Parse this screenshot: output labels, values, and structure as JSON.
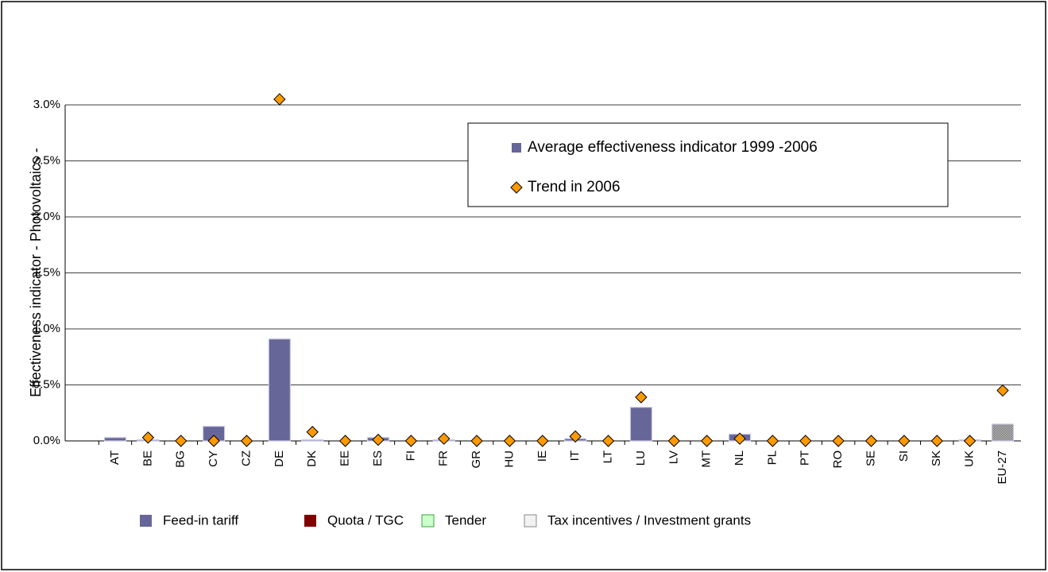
{
  "chart_data": {
    "type": "bar+scatter",
    "y_label": "Effectiveness indicator - Photovoltaics -",
    "categories": [
      "AT",
      "BE",
      "BG",
      "CY",
      "CZ",
      "DE",
      "DK",
      "EE",
      "ES",
      "FI",
      "FR",
      "GR",
      "HU",
      "IE",
      "IT",
      "LT",
      "LU",
      "LV",
      "MT",
      "NL",
      "PL",
      "PT",
      "RO",
      "SE",
      "SI",
      "SK",
      "UK",
      "EU-27"
    ],
    "series": [
      {
        "name": "Average effectiveness indicator 1999 -2006",
        "type": "bar",
        "color": "#666699",
        "colors": [
          "#666699",
          "#666699",
          "#666699",
          "#666699",
          "#666699",
          "#666699",
          "#666699",
          "#666699",
          "#666699",
          "#666699",
          "#666699",
          "#666699",
          "#666699",
          "#666699",
          "#666699",
          "#666699",
          "#666699",
          "#666699",
          "#666699",
          "#666699",
          "#666699",
          "#666699",
          "#666699",
          "#666699",
          "#666699",
          "#666699",
          "#666699",
          "#9a9a9a"
        ],
        "values": [
          0.03,
          0.01,
          0,
          0.13,
          0,
          0.91,
          0.01,
          0,
          0.03,
          0,
          0.01,
          0,
          0,
          0,
          0.02,
          0,
          0.3,
          0,
          0,
          0.06,
          0,
          0,
          0,
          0,
          0,
          0,
          0.01,
          0.15
        ]
      },
      {
        "name": "Trend in 2006",
        "type": "scatter",
        "color": "#ff9900",
        "values": [
          null,
          0.03,
          0,
          0,
          0,
          3.05,
          0.08,
          0,
          0.01,
          0,
          0.02,
          0,
          0,
          0,
          0.04,
          0,
          0.39,
          0,
          0,
          0.02,
          0,
          0,
          0,
          0,
          0,
          0,
          0,
          0.45
        ]
      }
    ],
    "ylim": [
      0,
      3
    ],
    "yticks": [
      {
        "value": 0,
        "label": "0.0%"
      },
      {
        "value": 0.5,
        "label": "0.5%"
      },
      {
        "value": 1,
        "label": "1.0%"
      },
      {
        "value": 1.5,
        "label": "1.5%"
      },
      {
        "value": 2,
        "label": "2.0%"
      },
      {
        "value": 2.5,
        "label": "2.5%"
      },
      {
        "value": 3,
        "label": "3.0%"
      }
    ],
    "grid": true,
    "policy_legend": [
      {
        "name": "Feed-in tariff",
        "color": "#666699"
      },
      {
        "name": "Quota / TGC",
        "color": "#800000"
      },
      {
        "name": "Tender",
        "color": "#ccffcc"
      },
      {
        "name": "Tax incentives / Investment grants",
        "color": "#f2f2f2"
      }
    ]
  }
}
